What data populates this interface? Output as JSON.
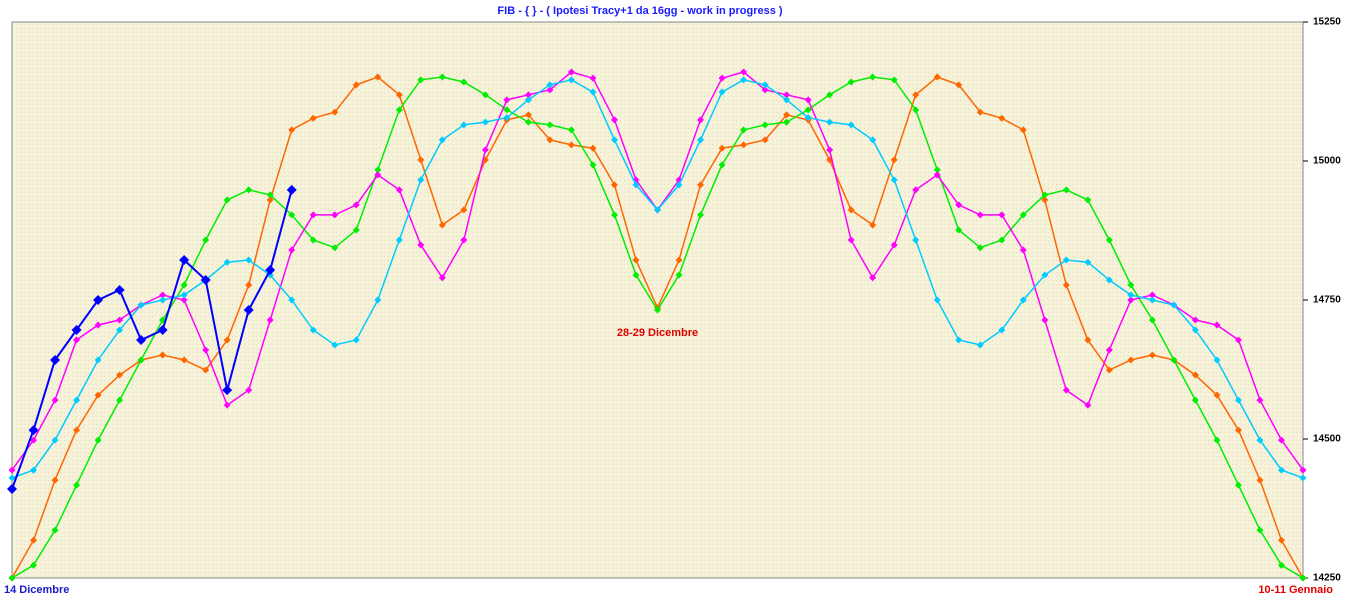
{
  "chart_data": {
    "type": "line",
    "title": "FIB  - { } - ( Ipotesi Tracy+1 da 16gg - work in progress )",
    "annotations": [
      {
        "text": "28-29 Dicembre"
      }
    ],
    "categories": [
      "14 Dicembre",
      null,
      null,
      null,
      null,
      null,
      null,
      null,
      null,
      null,
      null,
      null,
      null,
      null,
      null,
      null,
      null,
      null,
      null,
      null,
      null,
      null,
      null,
      null,
      null,
      null,
      null,
      null,
      null,
      null,
      null,
      null,
      null,
      null,
      null,
      null,
      null,
      null,
      null,
      null,
      null,
      null,
      null,
      null,
      null,
      null,
      null,
      null,
      null,
      null,
      null,
      null,
      null,
      null,
      null,
      null,
      null,
      null,
      null,
      null,
      "10-11 Gennaio"
    ],
    "ylim": [
      14250,
      15250
    ],
    "yticks": [
      14250,
      14500,
      14750,
      15000,
      15250
    ],
    "series": [
      {
        "color": "#ff6600",
        "values": [
          14250,
          14318,
          14426,
          14516,
          14579,
          14615,
          14642,
          14651,
          14642,
          14624,
          14678,
          14777,
          14930,
          15056,
          15077,
          15088,
          15137,
          15151,
          15119,
          15002,
          14885,
          14912,
          15002,
          15074,
          15083,
          15038,
          15029,
          15023,
          14957,
          14822,
          14736,
          14822,
          14957,
          15023,
          15029,
          15038,
          15083,
          15074,
          15002,
          14912,
          14885,
          15002,
          15119,
          15151,
          15137,
          15088,
          15077,
          15056,
          14930,
          14777,
          14678,
          14624,
          14642,
          14651,
          14642,
          14615,
          14579,
          14516,
          14426,
          14318,
          14250
        ]
      },
      {
        "color": "#00ee00",
        "values": [
          14250,
          14273,
          14336,
          14417,
          14498,
          14570,
          14642,
          14714,
          14777,
          14858,
          14930,
          14948,
          14939,
          14903,
          14858,
          14844,
          14876,
          14984,
          15092,
          15146,
          15151,
          15142,
          15119,
          15092,
          15070,
          15065,
          15056,
          14993,
          14903,
          14795,
          14732,
          14795,
          14903,
          14993,
          15056,
          15065,
          15070,
          15092,
          15119,
          15142,
          15151,
          15146,
          15092,
          14984,
          14876,
          14844,
          14858,
          14903,
          14939,
          14948,
          14930,
          14858,
          14777,
          14714,
          14642,
          14570,
          14498,
          14417,
          14336,
          14273,
          14250
        ]
      },
      {
        "color": "#ff00ff",
        "values": [
          14444,
          14498,
          14570,
          14678,
          14705,
          14714,
          14741,
          14759,
          14750,
          14660,
          14561,
          14588,
          14714,
          14840,
          14903,
          14903,
          14921,
          14975,
          14948,
          14849,
          14790,
          14858,
          15020,
          15110,
          15119,
          15128,
          15160,
          15149,
          15074,
          14966,
          14912,
          14966,
          15074,
          15149,
          15160,
          15128,
          15119,
          15110,
          15020,
          14858,
          14790,
          14849,
          14948,
          14975,
          14921,
          14903,
          14903,
          14840,
          14714,
          14588,
          14561,
          14660,
          14750,
          14759,
          14741,
          14714,
          14705,
          14678,
          14570,
          14498,
          14444
        ]
      },
      {
        "color": "#00ccff",
        "values": [
          14430,
          14444,
          14498,
          14570,
          14642,
          14696,
          14741,
          14750,
          14759,
          14786,
          14818,
          14822,
          14795,
          14750,
          14696,
          14669,
          14678,
          14750,
          14858,
          14966,
          15038,
          15065,
          15070,
          15078,
          15110,
          15137,
          15146,
          15124,
          15038,
          14957,
          14912,
          14957,
          15038,
          15124,
          15146,
          15137,
          15110,
          15078,
          15070,
          15065,
          15038,
          14966,
          14858,
          14750,
          14678,
          14669,
          14696,
          14750,
          14795,
          14822,
          14818,
          14786,
          14759,
          14750,
          14741,
          14696,
          14642,
          14570,
          14498,
          14444,
          14430
        ]
      },
      {
        "color": "#0000ff",
        "values": [
          14410,
          14516,
          14642,
          14696,
          14750,
          14768,
          14678,
          14696,
          14822,
          14786,
          14588,
          14732,
          14804,
          14948,
          null,
          null,
          null,
          null,
          null,
          null,
          null,
          null,
          null,
          null,
          null,
          null,
          null,
          null,
          null,
          null,
          null,
          null,
          null,
          null,
          null,
          null,
          null,
          null,
          null,
          null,
          null,
          null,
          null,
          null,
          null,
          null,
          null,
          null,
          null,
          null,
          null,
          null,
          null,
          null,
          null,
          null,
          null,
          null,
          null,
          null,
          null
        ]
      }
    ]
  }
}
